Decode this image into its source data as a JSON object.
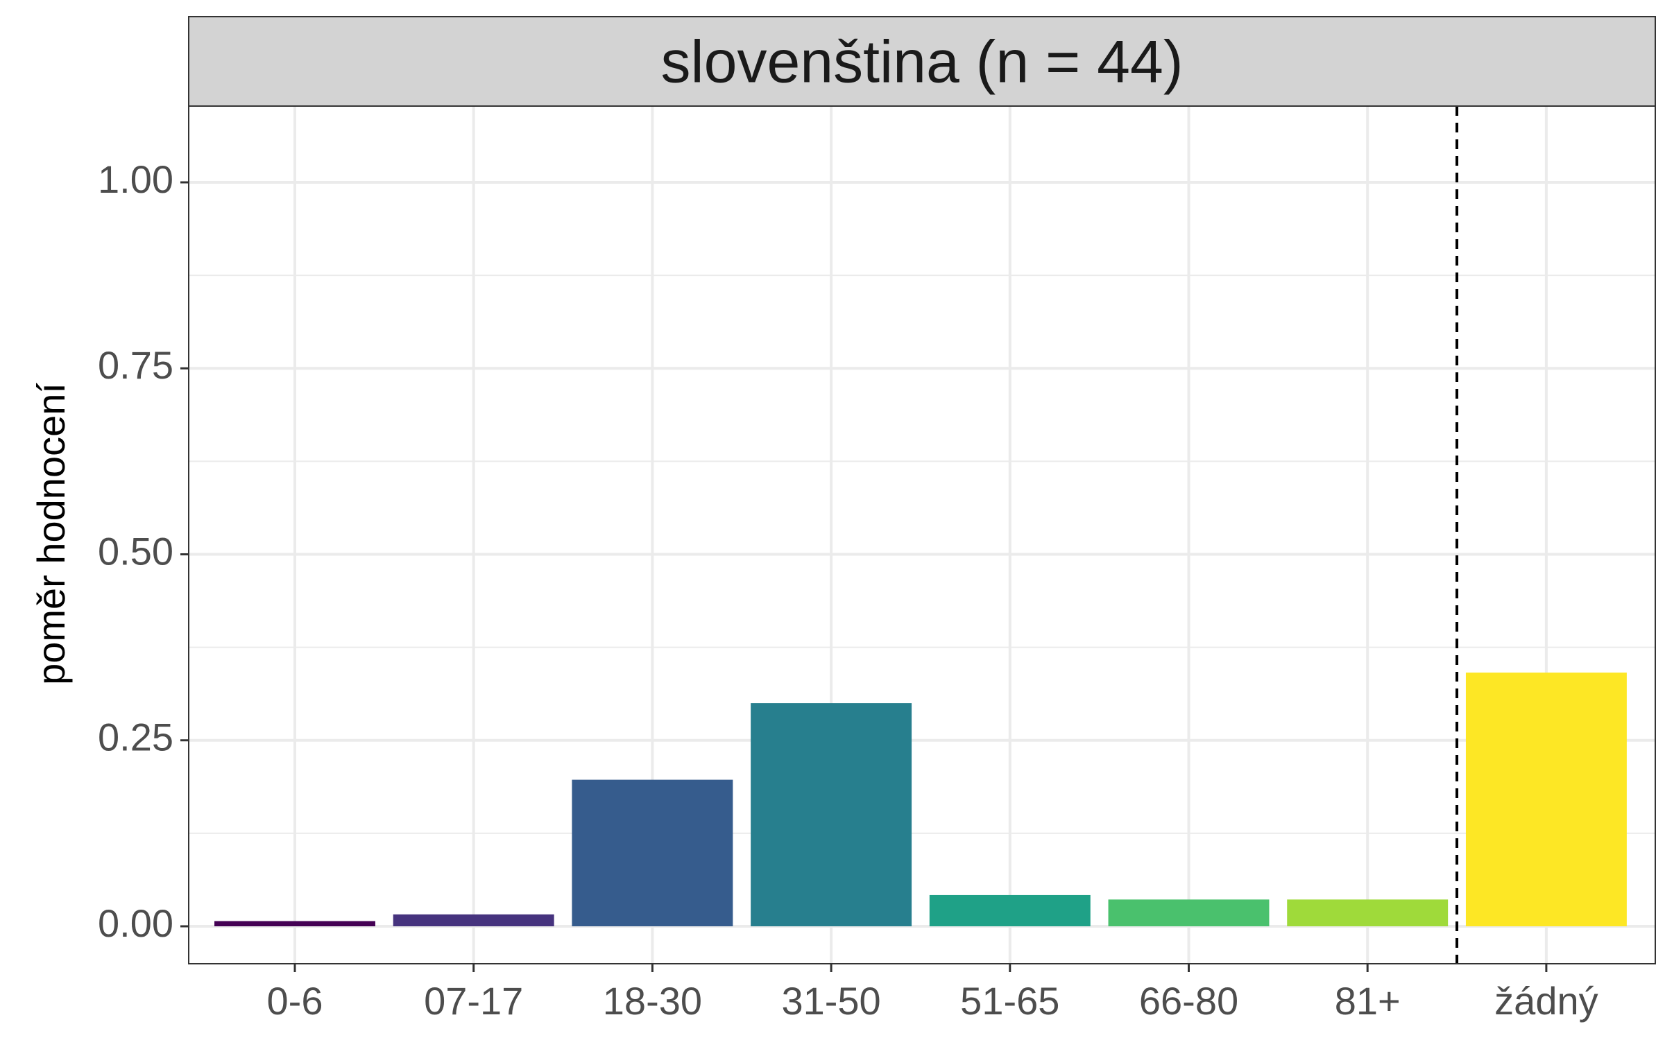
{
  "chart_data": {
    "type": "bar",
    "title": "",
    "facet_label": "slovenština (n = 44)",
    "xlabel": "",
    "ylabel": "poměr hodnocení",
    "ylim": [
      0,
      1.1
    ],
    "yticks": [
      0,
      0.25,
      0.5,
      0.75,
      1.0
    ],
    "ytick_labels": [
      "0.00",
      "0.25",
      "0.50",
      "0.75",
      "1.00"
    ],
    "categories": [
      "0-6",
      "07-17",
      "18-30",
      "31-50",
      "51-65",
      "66-80",
      "81+",
      "žádný"
    ],
    "values": [
      0.007,
      0.016,
      0.197,
      0.3,
      0.042,
      0.036,
      0.036,
      0.341
    ],
    "colors": [
      "#440154",
      "#46337E",
      "#365C8D",
      "#277F8E",
      "#1FA187",
      "#4AC16D",
      "#9FDA3A",
      "#FDE725"
    ],
    "separator_after_category": "81+",
    "grid": true,
    "legend": "none"
  }
}
